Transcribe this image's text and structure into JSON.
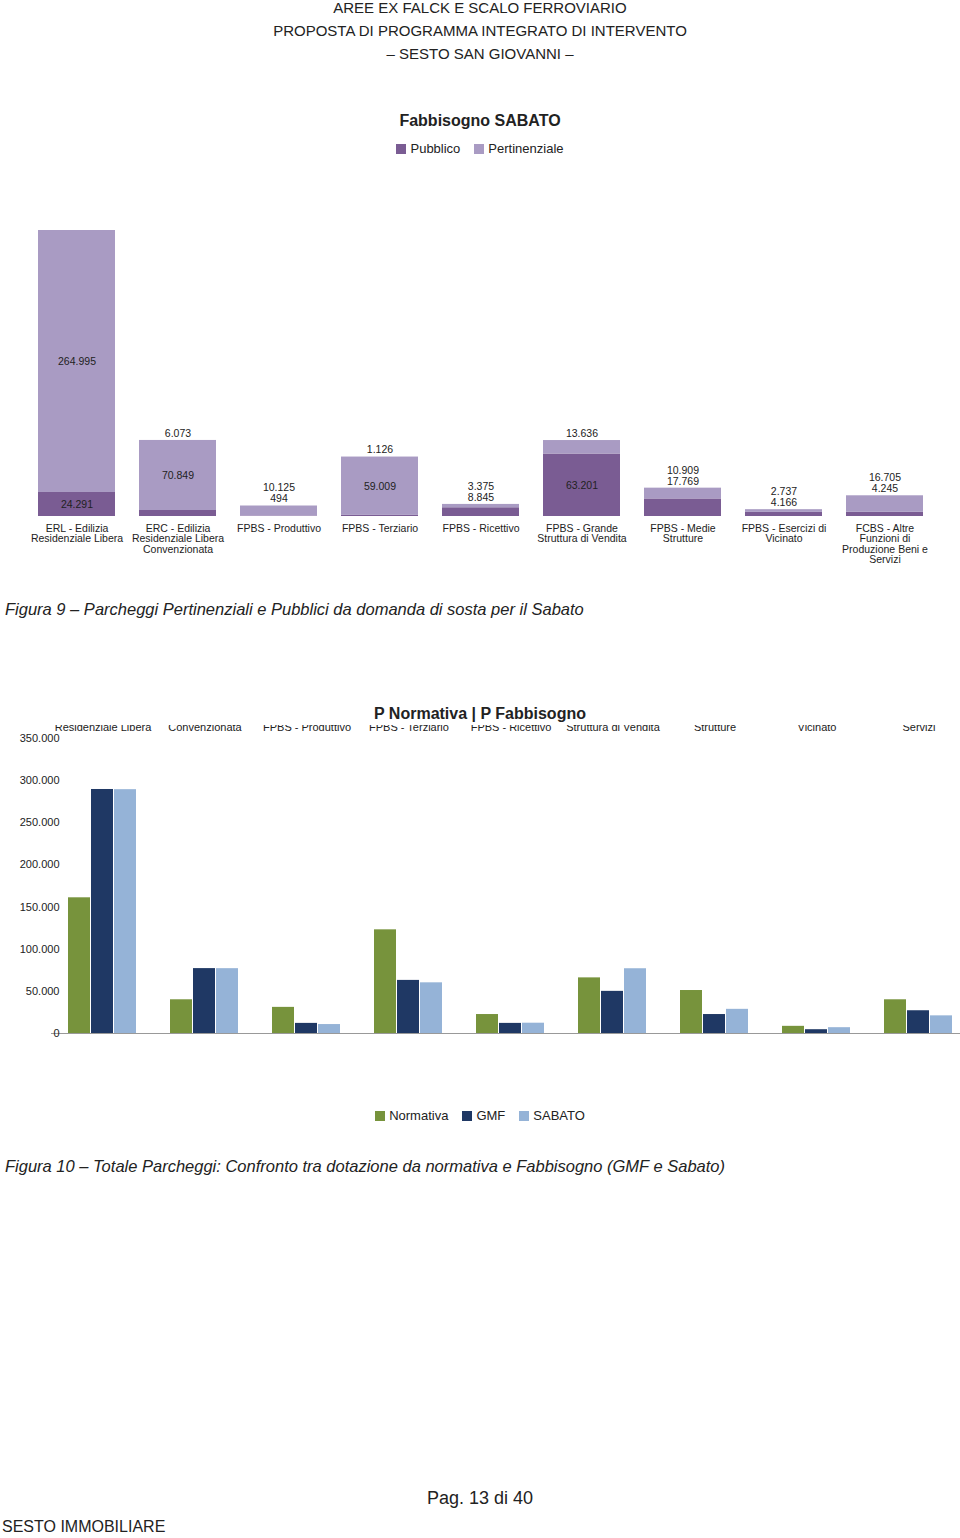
{
  "header": {
    "lines": [
      "AREE EX FALCK E SCALO FERROVIARIO",
      "PROPOSTA DI PROGRAMMA INTEGRATO DI INTERVENTO",
      "– SESTO SAN GIOVANNI –"
    ]
  },
  "chart_data": [
    {
      "type": "bar",
      "title": "Fabbisogno SABATO",
      "stacked": true,
      "data_labels": true,
      "tick_labels": "x",
      "legend": "top",
      "categories": [
        "ERL - Edilizia Residenziale Libera",
        "ERC - Edilizia Residenziale Libera Convenzionata",
        "FPBS - Produttivo",
        "FPBS - Terziario",
        "FPBS - Ricettivo",
        "FPBS - Grande Struttura di Vendita",
        "FPBS - Medie Strutture",
        "FPBS - Esercizi di Vicinato",
        "FCBS - Altre Funzioni di Produzione Beni e Servizi"
      ],
      "series": [
        {
          "name": "Pubblico",
          "color": "#7a5c93",
          "values": [
            24291,
            6073,
            494,
            1126,
            8845,
            63201,
            17769,
            4166,
            4245
          ],
          "value_labels": [
            "24.291",
            "6.073",
            "494",
            "1.126",
            "8.845",
            "63.201",
            "17.769",
            "4.166",
            "4.245"
          ]
        },
        {
          "name": "Pertinenziale",
          "color": "#a99bc3",
          "values": [
            264995,
            70849,
            10125,
            59009,
            3375,
            13636,
            10909,
            2737,
            16705
          ],
          "value_labels": [
            "264.995",
            "70.849",
            "10.125",
            "59.009",
            "3.375",
            "13.636",
            "10.909",
            "2.737",
            "16.705"
          ]
        }
      ],
      "caption": "Figura 9 – Parcheggi Pertinenziali e Pubblici da domanda di sosta per il Sabato"
    },
    {
      "type": "bar",
      "title": "P Normativa | P Fabbisogno",
      "legend": "bottom",
      "categories": [
        "ERL - Edilizia Residenziale Libera",
        "ERC - Edilizia Residenziale Libera Convenzionata",
        "FPBS - Produttivo",
        "FPBS - Terziario",
        "FPBS - Ricettivo",
        "FPBS - Grande Struttura di Vendita",
        "FPBS - Medie Strutture",
        "FPBS - Esercizi di Vicinato",
        "FCBS - Altre Funzioni di Produzione Beni e Servizi"
      ],
      "series": [
        {
          "name": "Normativa",
          "color": "#77933c",
          "values": [
            161000,
            40000,
            31000,
            123000,
            22500,
            66000,
            51000,
            8500,
            40000
          ]
        },
        {
          "name": "GMF",
          "color": "#1f3864",
          "values": [
            289500,
            77000,
            12000,
            63000,
            12000,
            50000,
            22500,
            4500,
            27000
          ]
        },
        {
          "name": "SABATO",
          "color": "#95b3d7",
          "values": [
            289286,
            76922,
            10619,
            60135,
            12220,
            76837,
            28678,
            6903,
            20950
          ]
        }
      ],
      "ylim": [
        0,
        350000
      ],
      "yticks": [
        0,
        {
          "value": 50000,
          "label": "50.000"
        },
        {
          "value": 100000,
          "label": "100.000"
        },
        {
          "value": 150000,
          "label": "150.000"
        },
        {
          "value": 200000,
          "label": "200.000"
        },
        {
          "value": 250000,
          "label": "250.000"
        },
        {
          "value": 300000,
          "label": "300.000"
        },
        {
          "value": 350000,
          "label": "350.000"
        }
      ],
      "caption": "Figura 10 – Totale Parcheggi: Confronto tra dotazione da normativa e Fabbisogno (GMF e Sabato)"
    }
  ],
  "footer": {
    "page": "Pag. 13 di 40",
    "company": "SESTO IMMOBILIARE"
  }
}
